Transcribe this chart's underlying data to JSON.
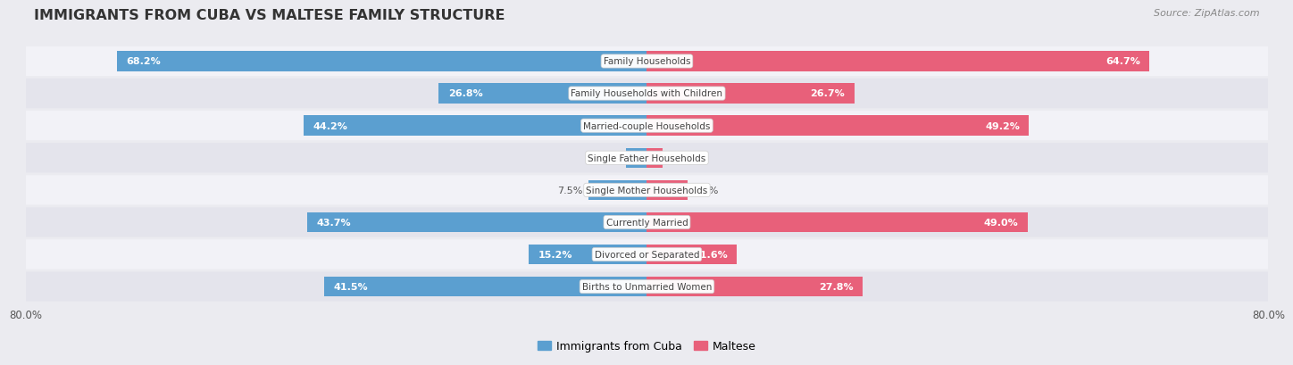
{
  "title": "IMMIGRANTS FROM CUBA VS MALTESE FAMILY STRUCTURE",
  "source": "Source: ZipAtlas.com",
  "categories": [
    "Family Households",
    "Family Households with Children",
    "Married-couple Households",
    "Single Father Households",
    "Single Mother Households",
    "Currently Married",
    "Divorced or Separated",
    "Births to Unmarried Women"
  ],
  "cuba_values": [
    68.2,
    26.8,
    44.2,
    2.7,
    7.5,
    43.7,
    15.2,
    41.5
  ],
  "maltese_values": [
    64.7,
    26.7,
    49.2,
    2.0,
    5.2,
    49.0,
    11.6,
    27.8
  ],
  "cuba_color_dark": "#5B9FD0",
  "cuba_color_light": "#A8CFEB",
  "maltese_color_dark": "#E8607A",
  "maltese_color_light": "#F4AABB",
  "bar_height": 0.62,
  "xlim_max": 80,
  "x_axis_left_label": "80.0%",
  "x_axis_right_label": "80.0%",
  "legend_label_cuba": "Immigrants from Cuba",
  "legend_label_maltese": "Maltese",
  "background_color": "#EBEBF0",
  "row_bg_light": "#F2F2F7",
  "row_bg_dark": "#E4E4EC",
  "center_label_bg": "#FFFFFF",
  "center_label_color": "#444444",
  "value_label_color_inside": "#FFFFFF",
  "value_label_color_outside": "#555555",
  "title_color": "#333333",
  "source_color": "#888888"
}
